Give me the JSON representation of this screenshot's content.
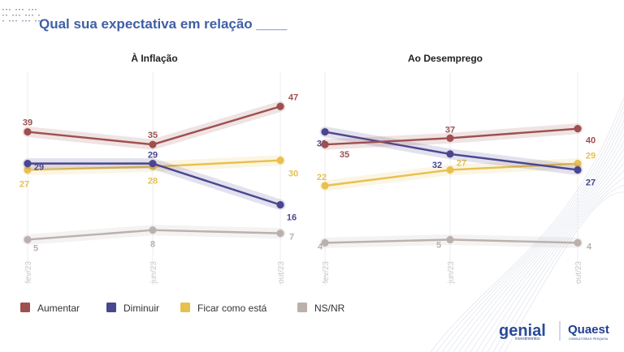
{
  "title": "Qual sua expectativa em relação ____",
  "colors": {
    "aumentar": "#9e4f4f",
    "diminuir": "#4a4690",
    "ficar": "#e8c04f",
    "nsnr": "#bab1ad",
    "title": "#3f5fa6"
  },
  "chart_data": [
    {
      "type": "line",
      "title": "À Inflação",
      "categories": [
        "fev/23",
        "jun/23",
        "out/23"
      ],
      "ylim": [
        0,
        55
      ],
      "series": [
        {
          "name": "Aumentar",
          "values": [
            39,
            35,
            47
          ]
        },
        {
          "name": "Diminuir",
          "values": [
            29,
            29,
            16
          ]
        },
        {
          "name": "Ficar como está",
          "values": [
            27,
            28,
            30
          ]
        },
        {
          "name": "NS/NR",
          "values": [
            5,
            8,
            7
          ]
        }
      ]
    },
    {
      "type": "line",
      "title": "Ao Desemprego",
      "categories": [
        "fev/23",
        "jun/23",
        "out/23"
      ],
      "ylim": [
        0,
        55
      ],
      "series": [
        {
          "name": "Aumentar",
          "values": [
            35,
            37,
            40
          ]
        },
        {
          "name": "Diminuir",
          "values": [
            39,
            32,
            27
          ]
        },
        {
          "name": "Ficar como está",
          "values": [
            22,
            27,
            29
          ]
        },
        {
          "name": "NS/NR",
          "values": [
            4,
            5,
            4
          ]
        }
      ]
    }
  ],
  "legend": [
    "Aumentar",
    "Diminuir",
    "Ficar como está",
    "NS/NR"
  ],
  "logos": {
    "genial": "genial",
    "genial_sub": "investimentos",
    "quaest": "Quaest",
    "quaest_sub": "CONSULTORIA E PESQUISA"
  }
}
